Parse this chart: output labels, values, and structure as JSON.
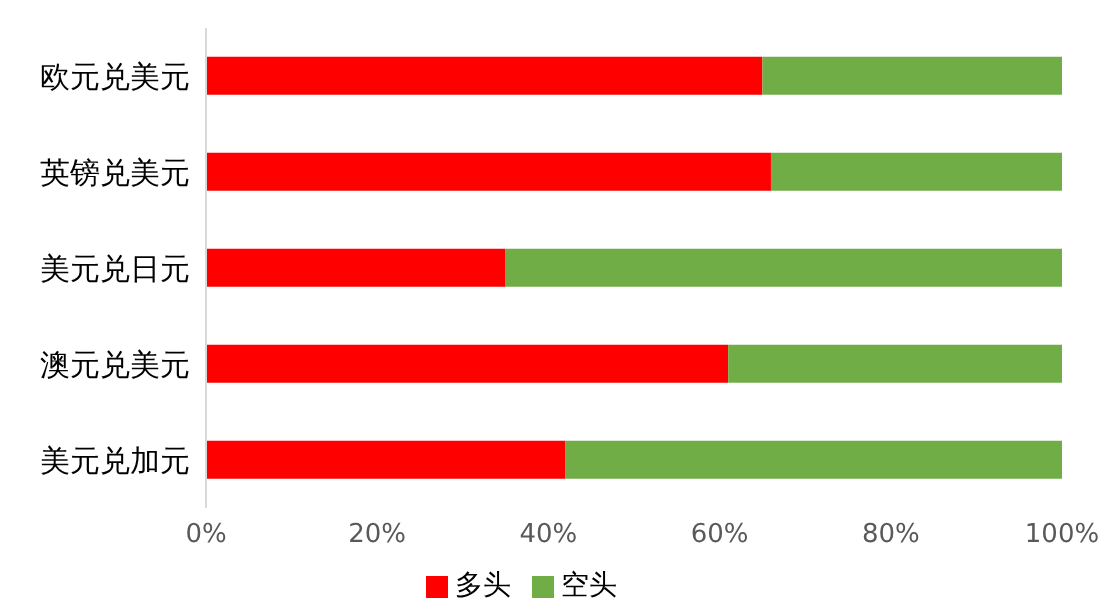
{
  "chart_data": {
    "type": "bar",
    "orientation": "horizontal",
    "stacked": true,
    "categories": [
      "欧元兑美元",
      "英镑兑美元",
      "美元兑日元",
      "澳元兑美元",
      "美元兑加元"
    ],
    "series": [
      {
        "name": "多头",
        "color": "#ff0000",
        "values": [
          65,
          66,
          35,
          61,
          42
        ]
      },
      {
        "name": "空头",
        "color": "#70ad47",
        "values": [
          35,
          34,
          65,
          39,
          58
        ]
      }
    ],
    "xlim": [
      0,
      100
    ],
    "xticks": [
      {
        "value": 0,
        "label": "0%"
      },
      {
        "value": 20,
        "label": "20%"
      },
      {
        "value": 40,
        "label": "40%"
      },
      {
        "value": 60,
        "label": "60%"
      },
      {
        "value": 80,
        "label": "80%"
      },
      {
        "value": 100,
        "label": "100%"
      }
    ],
    "grid": false,
    "legend": "bottom"
  }
}
